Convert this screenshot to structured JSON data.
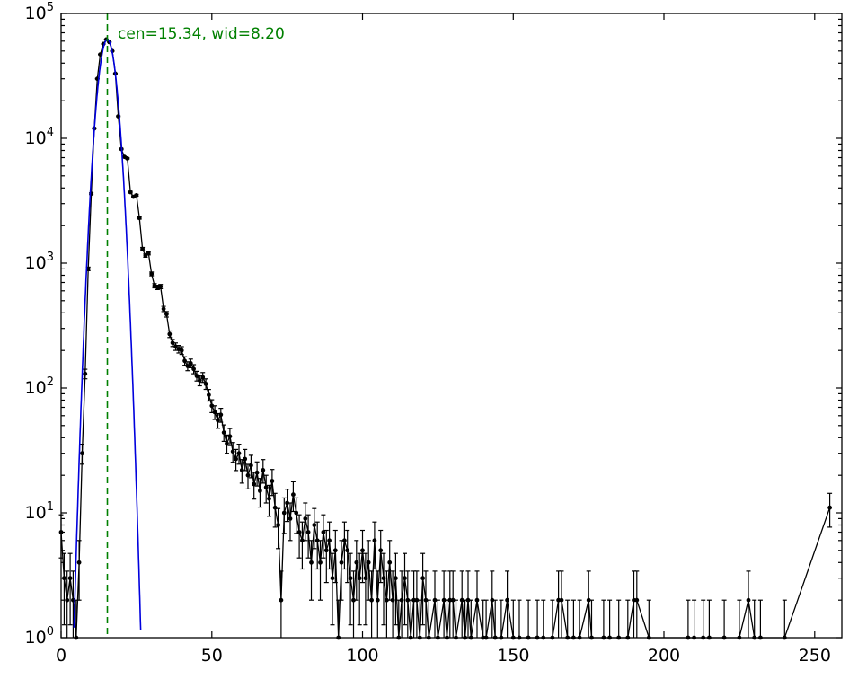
{
  "chart_data": {
    "type": "scatter",
    "title": "",
    "xlabel": "",
    "ylabel": "",
    "grid": false,
    "x_axis": {
      "lim": [
        0,
        259
      ],
      "ticks": [
        0,
        50,
        100,
        150,
        200,
        250
      ]
    },
    "y_axis": {
      "scale": "log",
      "lim": [
        1,
        100000
      ],
      "tick_exponents": [
        0,
        1,
        2,
        3,
        4,
        5
      ]
    },
    "annotation": {
      "text": "cen=15.34, wid=8.20",
      "color": "#008000",
      "x_data": 18.7,
      "y_data": 70000
    },
    "series": [
      {
        "name": "histogram-counts",
        "type": "errorbar-line",
        "color": "#000000",
        "marker": "o",
        "yerr": "sqrt",
        "points": [
          [
            0,
            7
          ],
          [
            1,
            3
          ],
          [
            2,
            2
          ],
          [
            3,
            3
          ],
          [
            4,
            2
          ],
          [
            5,
            1
          ],
          [
            6,
            4
          ],
          [
            7,
            30
          ],
          [
            8,
            130
          ],
          [
            9,
            900
          ],
          [
            10,
            3600
          ],
          [
            11,
            12000
          ],
          [
            12,
            30000
          ],
          [
            13,
            47000
          ],
          [
            14,
            57000
          ],
          [
            15,
            62000
          ],
          [
            16,
            59000
          ],
          [
            17,
            50000
          ],
          [
            18,
            33000
          ],
          [
            19,
            15000
          ],
          [
            20,
            8200
          ],
          [
            21,
            7100
          ],
          [
            22,
            6900
          ],
          [
            23,
            3700
          ],
          [
            24,
            3400
          ],
          [
            25,
            3500
          ],
          [
            26,
            2300
          ],
          [
            27,
            1300
          ],
          [
            28,
            1150
          ],
          [
            29,
            1200
          ],
          [
            30,
            820
          ],
          [
            31,
            660
          ],
          [
            32,
            640
          ],
          [
            33,
            650
          ],
          [
            34,
            430
          ],
          [
            35,
            390
          ],
          [
            36,
            270
          ],
          [
            37,
            230
          ],
          [
            38,
            215
          ],
          [
            39,
            205
          ],
          [
            40,
            200
          ],
          [
            41,
            165
          ],
          [
            42,
            150
          ],
          [
            43,
            158
          ],
          [
            44,
            142
          ],
          [
            45,
            125
          ],
          [
            46,
            115
          ],
          [
            47,
            122
          ],
          [
            48,
            108
          ],
          [
            49,
            88
          ],
          [
            50,
            72
          ],
          [
            51,
            64
          ],
          [
            52,
            55
          ],
          [
            53,
            61
          ],
          [
            54,
            44
          ],
          [
            55,
            36
          ],
          [
            56,
            41
          ],
          [
            57,
            31
          ],
          [
            58,
            27
          ],
          [
            59,
            30
          ],
          [
            60,
            22
          ],
          [
            61,
            27
          ],
          [
            62,
            20
          ],
          [
            63,
            24
          ],
          [
            64,
            17
          ],
          [
            65,
            21
          ],
          [
            66,
            15
          ],
          [
            67,
            22
          ],
          [
            68,
            16
          ],
          [
            69,
            13
          ],
          [
            70,
            18
          ],
          [
            71,
            11
          ],
          [
            72,
            8
          ],
          [
            73,
            2
          ],
          [
            74,
            10
          ],
          [
            75,
            12
          ],
          [
            76,
            9
          ],
          [
            77,
            14
          ],
          [
            78,
            10
          ],
          [
            79,
            7
          ],
          [
            80,
            6
          ],
          [
            81,
            9
          ],
          [
            82,
            7
          ],
          [
            83,
            4
          ],
          [
            84,
            8
          ],
          [
            85,
            6
          ],
          [
            86,
            4
          ],
          [
            87,
            7
          ],
          [
            88,
            5
          ],
          [
            89,
            6
          ],
          [
            90,
            3
          ],
          [
            91,
            5
          ],
          [
            92,
            1
          ],
          [
            93,
            4
          ],
          [
            94,
            6
          ],
          [
            95,
            5
          ],
          [
            96,
            3
          ],
          [
            97,
            2
          ],
          [
            98,
            4
          ],
          [
            99,
            3
          ],
          [
            100,
            5
          ],
          [
            101,
            3
          ],
          [
            102,
            4
          ],
          [
            103,
            2
          ],
          [
            104,
            6
          ],
          [
            105,
            2
          ],
          [
            106,
            5
          ],
          [
            107,
            3
          ],
          [
            108,
            2
          ],
          [
            109,
            4
          ],
          [
            110,
            2
          ],
          [
            111,
            3
          ],
          [
            112,
            1
          ],
          [
            113,
            2
          ],
          [
            114,
            3
          ],
          [
            115,
            2
          ],
          [
            116,
            1
          ],
          [
            117,
            2
          ],
          [
            118,
            2
          ],
          [
            119,
            1
          ],
          [
            120,
            3
          ],
          [
            121,
            2
          ],
          [
            122,
            1
          ],
          [
            124,
            2
          ],
          [
            125,
            1
          ],
          [
            127,
            2
          ],
          [
            128,
            1
          ],
          [
            129,
            2
          ],
          [
            130,
            2
          ],
          [
            131,
            1
          ],
          [
            133,
            2
          ],
          [
            134,
            1
          ],
          [
            135,
            2
          ],
          [
            136,
            1
          ],
          [
            138,
            2
          ],
          [
            140,
            1
          ],
          [
            141,
            1
          ],
          [
            143,
            2
          ],
          [
            144,
            1
          ],
          [
            146,
            1
          ],
          [
            148,
            2
          ],
          [
            150,
            1
          ],
          [
            152,
            1
          ],
          [
            155,
            1
          ],
          [
            158,
            1
          ],
          [
            160,
            1
          ],
          [
            163,
            1
          ],
          [
            165,
            2
          ],
          [
            166,
            2
          ],
          [
            168,
            1
          ],
          [
            170,
            1
          ],
          [
            172,
            1
          ],
          [
            175,
            2
          ],
          [
            176,
            1
          ],
          [
            180,
            1
          ],
          [
            182,
            1
          ],
          [
            185,
            1
          ],
          [
            188,
            1
          ],
          [
            190,
            2
          ],
          [
            191,
            2
          ],
          [
            195,
            1
          ],
          [
            208,
            1
          ],
          [
            210,
            1
          ],
          [
            213,
            1
          ],
          [
            215,
            1
          ],
          [
            220,
            1
          ],
          [
            225,
            1
          ],
          [
            228,
            2
          ],
          [
            230,
            1
          ],
          [
            232,
            1
          ],
          [
            240,
            1
          ],
          [
            255,
            11
          ]
        ]
      },
      {
        "name": "gaussian-fit",
        "type": "gaussian",
        "color": "#0000dd",
        "center": 15.34,
        "width": 8.2,
        "amplitude": 62000,
        "sigma_visual": 2.37
      },
      {
        "name": "center-vline",
        "type": "vline",
        "x": 15.34,
        "color": "#008000",
        "style": "dashed"
      }
    ]
  }
}
